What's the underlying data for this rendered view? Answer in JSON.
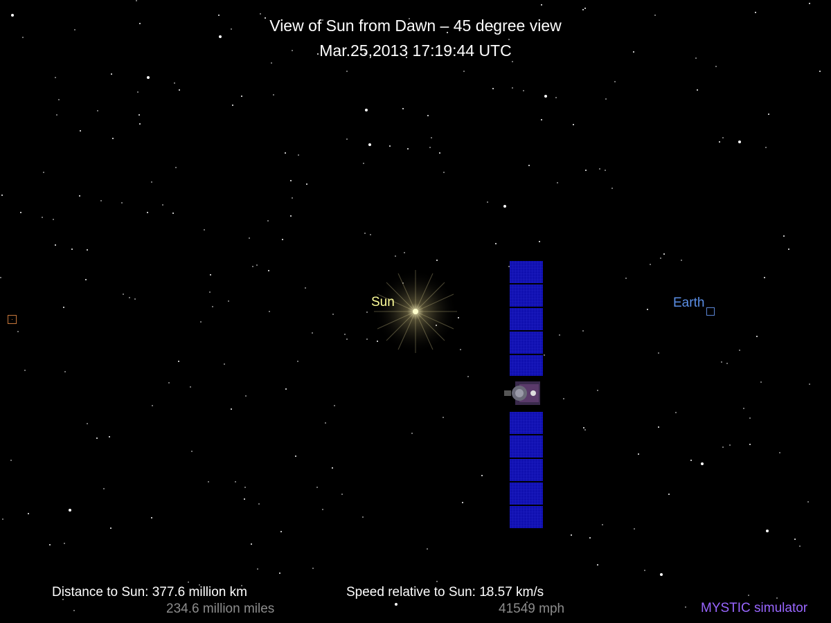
{
  "title": "View of Sun from Dawn – 45 degree view",
  "timestamp": "Mar.25,2013 17:19:44  UTC",
  "bodies": {
    "sun": {
      "label": "Sun",
      "color": "#ffff99"
    },
    "earth": {
      "label": "Earth",
      "color": "#5b8fe6"
    }
  },
  "distance": {
    "label": "Distance to Sun: 377.6 million km",
    "miles": "234.6 million miles"
  },
  "speed": {
    "label": "Speed relative to Sun: 18.57 km/s",
    "mph": "41549 mph"
  },
  "watermark": {
    "text": "MYSTIC simulator",
    "color": "#9966ff"
  },
  "icons": {
    "spacecraft": "dawn-spacecraft-icon",
    "earth_marker": "square-marker-icon",
    "target_marker": "square-marker-icon"
  }
}
